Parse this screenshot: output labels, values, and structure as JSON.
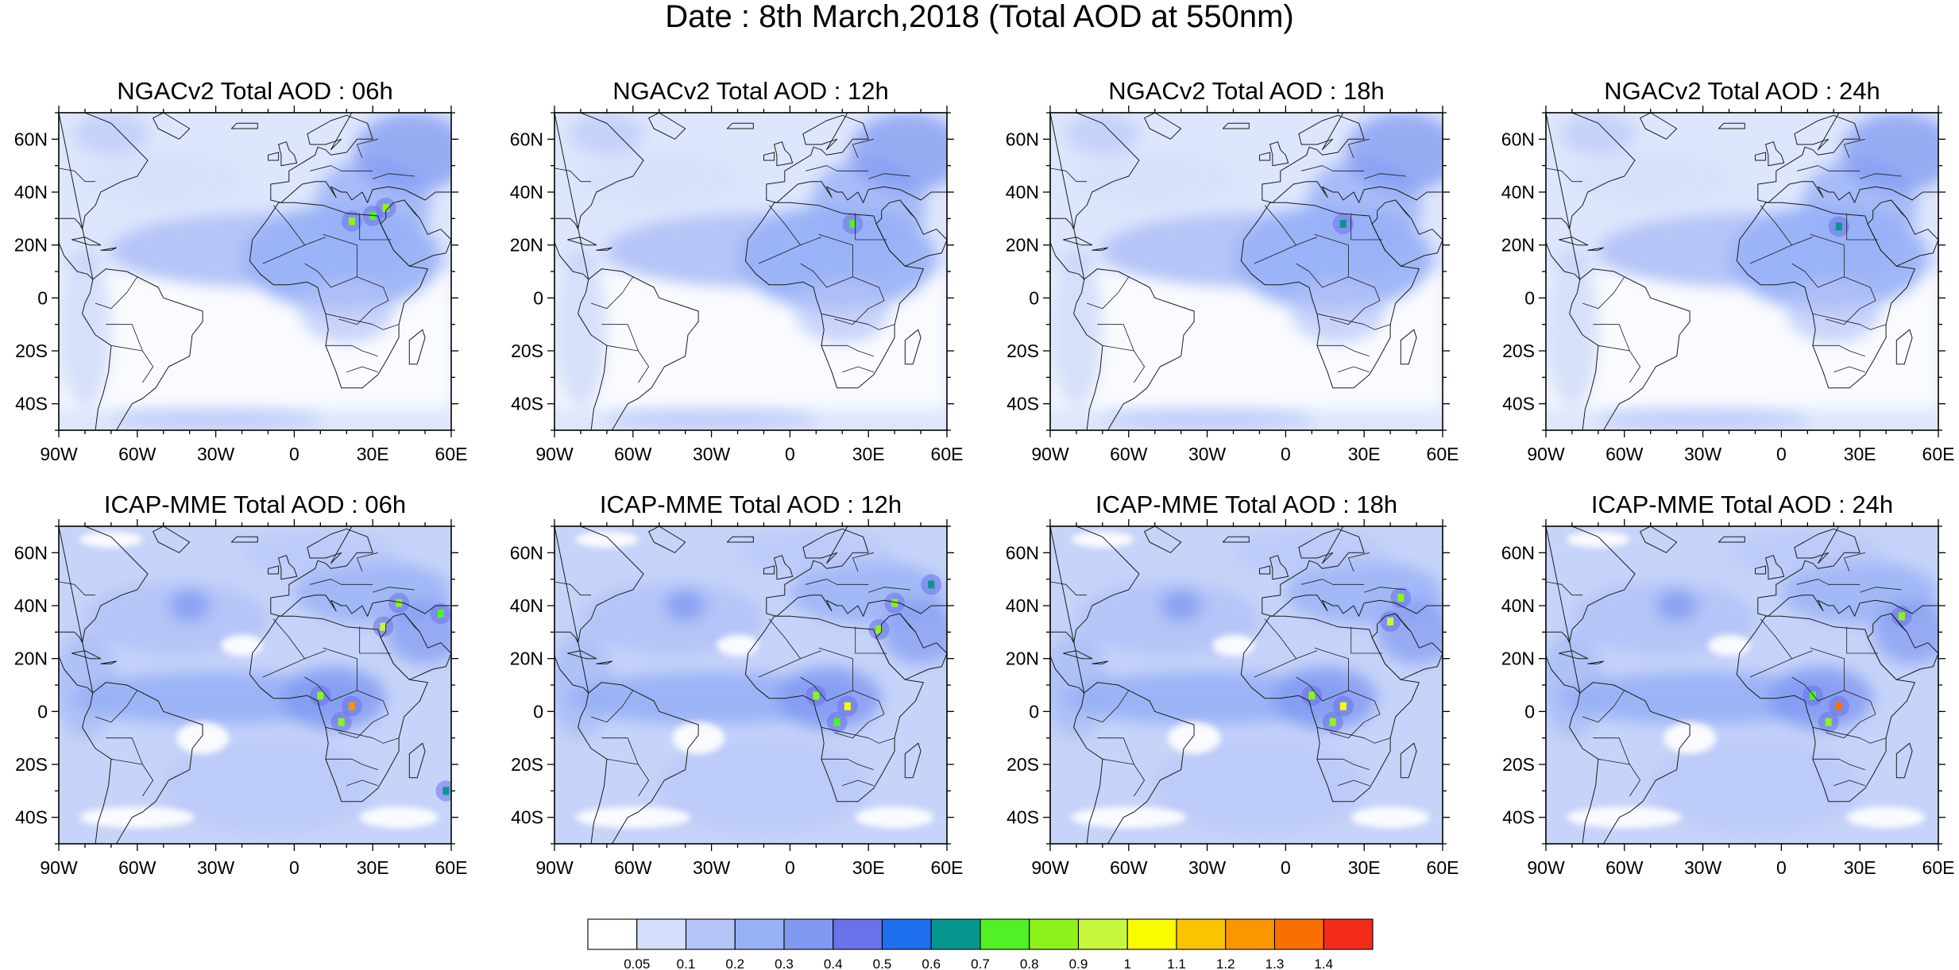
{
  "figure": {
    "title": "Date : 8th March,2018 (Total AOD at 550nm)"
  },
  "axes": {
    "lon_ticks": [
      "90W",
      "60W",
      "30W",
      "0",
      "30E",
      "60E"
    ],
    "lat_ticks": [
      "60N",
      "40N",
      "20N",
      "0",
      "20S",
      "40S"
    ],
    "lon_range_deg": [
      -90,
      60
    ],
    "lat_range_deg": [
      -50,
      70
    ]
  },
  "panels": [
    {
      "title": "NGACv2 Total AOD : 06h",
      "model": "NGACv2",
      "hour": "06h",
      "background_aod": "0.05-0.1",
      "hotspots": [
        {
          "lon": 22,
          "lat": 29,
          "aod": "0.7-0.9"
        },
        {
          "lon": 30,
          "lat": 31,
          "aod": "0.7-0.8"
        },
        {
          "lon": 35,
          "lat": 34,
          "aod": "0.8-0.9"
        }
      ]
    },
    {
      "title": "NGACv2 Total AOD : 12h",
      "model": "NGACv2",
      "hour": "12h",
      "background_aod": "0.05-0.1",
      "hotspots": [
        {
          "lon": 24,
          "lat": 28,
          "aod": "0.7-0.8"
        }
      ]
    },
    {
      "title": "NGACv2 Total AOD : 18h",
      "model": "NGACv2",
      "hour": "18h",
      "background_aod": "0.05-0.1",
      "hotspots": [
        {
          "lon": 22,
          "lat": 28,
          "aod": "0.6-0.7"
        }
      ]
    },
    {
      "title": "NGACv2 Total AOD : 24h",
      "model": "NGACv2",
      "hour": "24h",
      "background_aod": "0.05-0.1",
      "hotspots": [
        {
          "lon": 22,
          "lat": 27,
          "aod": "0.6-0.7"
        }
      ]
    },
    {
      "title": "ICAP-MME Total AOD : 06h",
      "model": "ICAP-MME",
      "hour": "06h",
      "background_aod": "0.1-0.2",
      "hotspots": [
        {
          "lon": 10,
          "lat": 6,
          "aod": "0.8-0.9"
        },
        {
          "lon": 22,
          "lat": 2,
          "aod": "1.1-1.3"
        },
        {
          "lon": 18,
          "lat": -4,
          "aod": "0.8-0.9"
        },
        {
          "lon": 34,
          "lat": 32,
          "aod": "0.9-1.0"
        },
        {
          "lon": 40,
          "lat": 41,
          "aod": "0.8-0.9"
        },
        {
          "lon": 56,
          "lat": 37,
          "aod": "0.7-0.8"
        },
        {
          "lon": 58,
          "lat": -30,
          "aod": "0.6-0.7"
        }
      ]
    },
    {
      "title": "ICAP-MME Total AOD : 12h",
      "model": "ICAP-MME",
      "hour": "12h",
      "background_aod": "0.1-0.2",
      "hotspots": [
        {
          "lon": 10,
          "lat": 6,
          "aod": "0.8-0.9"
        },
        {
          "lon": 22,
          "lat": 2,
          "aod": "1.0-1.1"
        },
        {
          "lon": 18,
          "lat": -4,
          "aod": "0.7-0.8"
        },
        {
          "lon": 34,
          "lat": 31,
          "aod": "0.8-0.9"
        },
        {
          "lon": 40,
          "lat": 41,
          "aod": "0.8-0.9"
        },
        {
          "lon": 54,
          "lat": 48,
          "aod": "0.6-0.7"
        }
      ]
    },
    {
      "title": "ICAP-MME Total AOD : 18h",
      "model": "ICAP-MME",
      "hour": "18h",
      "background_aod": "0.1-0.2",
      "hotspots": [
        {
          "lon": 10,
          "lat": 6,
          "aod": "0.8-0.9"
        },
        {
          "lon": 22,
          "lat": 2,
          "aod": "1.0-1.1"
        },
        {
          "lon": 18,
          "lat": -4,
          "aod": "0.8-0.9"
        },
        {
          "lon": 40,
          "lat": 34,
          "aod": "0.9-1.0"
        },
        {
          "lon": 44,
          "lat": 43,
          "aod": "0.8-0.9"
        }
      ]
    },
    {
      "title": "ICAP-MME Total AOD : 24h",
      "model": "ICAP-MME",
      "hour": "24h",
      "background_aod": "0.1-0.2",
      "hotspots": [
        {
          "lon": 12,
          "lat": 6,
          "aod": "0.7-0.8"
        },
        {
          "lon": 22,
          "lat": 2,
          "aod": "1.2-1.4"
        },
        {
          "lon": 18,
          "lat": -4,
          "aod": "0.8-0.9"
        },
        {
          "lon": 46,
          "lat": 36,
          "aod": "0.8-0.9"
        }
      ]
    }
  ],
  "colorbar": {
    "labels": [
      "0.05",
      "0.1",
      "0.2",
      "0.3",
      "0.4",
      "0.5",
      "0.6",
      "0.7",
      "0.8",
      "0.9",
      "1",
      "1.1",
      "1.2",
      "1.3",
      "1.4"
    ],
    "colors": [
      "#ffffff",
      "#d4e0fb",
      "#b5c5f8",
      "#98b0f6",
      "#8199f1",
      "#6a72ea",
      "#1e6ef0",
      "#05978f",
      "#51f027",
      "#8ef21a",
      "#c7f83d",
      "#fbfb00",
      "#fbc400",
      "#fa9700",
      "#fa7000",
      "#f32b1a"
    ]
  }
}
